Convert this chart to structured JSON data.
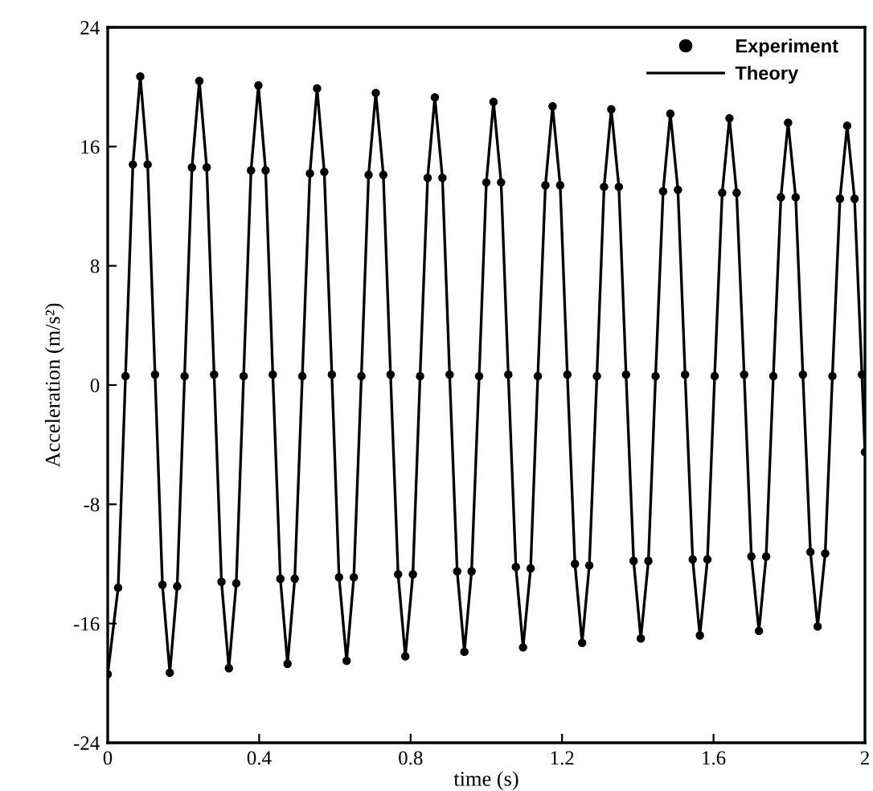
{
  "chart_data": {
    "type": "line",
    "xlabel": "time (s)",
    "ylabel": "Acceleration (m/s²)",
    "xlim": [
      0,
      2
    ],
    "xticks": [
      0,
      0.4,
      0.8,
      1.2,
      1.6,
      2
    ],
    "ylim": [
      -24,
      24
    ],
    "yticks": [
      -24,
      -16,
      -8,
      0,
      8,
      16,
      24
    ],
    "grid": false,
    "legend": "top right",
    "x": [
      0,
      0.0275,
      0.047,
      0.0665,
      0.086,
      0.1055,
      0.125,
      0.1445,
      0.164,
      0.1835,
      0.203,
      0.2225,
      0.242,
      0.2615,
      0.281,
      0.3005,
      0.32,
      0.3395,
      0.359,
      0.3785,
      0.398,
      0.417,
      0.436,
      0.456,
      0.475,
      0.494,
      0.514,
      0.534,
      0.553,
      0.572,
      0.592,
      0.611,
      0.631,
      0.65,
      0.67,
      0.689,
      0.708,
      0.728,
      0.747,
      0.767,
      0.786,
      0.806,
      0.825,
      0.845,
      0.864,
      0.884,
      0.903,
      0.923,
      0.942,
      0.961,
      0.981,
      1.0,
      1.019,
      1.039,
      1.058,
      1.078,
      1.097,
      1.117,
      1.136,
      1.156,
      1.175,
      1.195,
      1.214,
      1.234,
      1.253,
      1.272,
      1.292,
      1.311,
      1.33,
      1.35,
      1.369,
      1.389,
      1.408,
      1.428,
      1.447,
      1.467,
      1.486,
      1.506,
      1.525,
      1.545,
      1.564,
      1.584,
      1.603,
      1.623,
      1.642,
      1.661,
      1.681,
      1.7,
      1.72,
      1.739,
      1.758,
      1.778,
      1.797,
      1.817,
      1.836,
      1.856,
      1.875,
      1.895,
      1.914,
      1.934,
      1.953,
      1.9725,
      1.992,
      2.0
    ],
    "series": [
      {
        "name": "Experiment",
        "type": "scatter",
        "marker": "circle",
        "color": "#000000",
        "values": [
          -19.4,
          -13.6,
          0.6,
          14.8,
          20.7,
          14.8,
          0.7,
          -13.4,
          -19.3,
          -13.5,
          0.6,
          14.6,
          20.4,
          14.6,
          0.7,
          -13.2,
          -19.0,
          -13.3,
          0.6,
          14.4,
          20.1,
          14.4,
          0.7,
          -13.0,
          -18.7,
          -13.0,
          0.6,
          14.2,
          19.9,
          14.3,
          0.7,
          -12.9,
          -18.5,
          -12.9,
          0.6,
          14.1,
          19.6,
          14.1,
          0.7,
          -12.7,
          -18.2,
          -12.7,
          0.6,
          13.9,
          19.3,
          13.9,
          0.7,
          -12.5,
          -17.9,
          -12.5,
          0.6,
          13.6,
          19.0,
          13.6,
          0.7,
          -12.2,
          -17.6,
          -12.3,
          0.6,
          13.4,
          18.7,
          13.4,
          0.7,
          -12.0,
          -17.3,
          -12.1,
          0.6,
          13.3,
          18.5,
          13.3,
          0.7,
          -11.8,
          -17.0,
          -11.8,
          0.6,
          13.0,
          18.2,
          13.1,
          0.7,
          -11.7,
          -16.8,
          -11.7,
          0.6,
          12.9,
          17.9,
          12.9,
          0.7,
          -11.5,
          -16.5,
          -11.5,
          0.6,
          12.6,
          17.6,
          12.6,
          0.7,
          -11.2,
          -16.2,
          -11.3,
          0.6,
          12.5,
          17.4,
          12.5,
          0.7,
          -4.5
        ]
      },
      {
        "name": "Theory",
        "line_style": "solid",
        "color": "#000000",
        "values": [
          -19.4,
          -13.6,
          0.6,
          14.8,
          20.7,
          14.8,
          0.7,
          -13.4,
          -19.3,
          -13.5,
          0.6,
          14.6,
          20.4,
          14.6,
          0.7,
          -13.2,
          -19.0,
          -13.3,
          0.6,
          14.4,
          20.1,
          14.4,
          0.7,
          -13.0,
          -18.7,
          -13.0,
          0.6,
          14.2,
          19.9,
          14.3,
          0.7,
          -12.9,
          -18.5,
          -12.9,
          0.6,
          14.1,
          19.6,
          14.1,
          0.7,
          -12.7,
          -18.2,
          -12.7,
          0.6,
          13.9,
          19.3,
          13.9,
          0.7,
          -12.5,
          -17.9,
          -12.5,
          0.6,
          13.6,
          19.0,
          13.6,
          0.7,
          -12.2,
          -17.6,
          -12.3,
          0.6,
          13.4,
          18.7,
          13.4,
          0.7,
          -12.0,
          -17.3,
          -12.1,
          0.6,
          13.3,
          18.5,
          13.3,
          0.7,
          -11.8,
          -17.0,
          -11.8,
          0.6,
          13.0,
          18.2,
          13.1,
          0.7,
          -11.7,
          -16.8,
          -11.7,
          0.6,
          12.9,
          17.9,
          12.9,
          0.7,
          -11.5,
          -16.5,
          -11.5,
          0.6,
          12.6,
          17.6,
          12.6,
          0.7,
          -11.2,
          -16.2,
          -11.3,
          0.6,
          12.5,
          17.4,
          12.5,
          0.7,
          -4.5
        ]
      }
    ]
  }
}
